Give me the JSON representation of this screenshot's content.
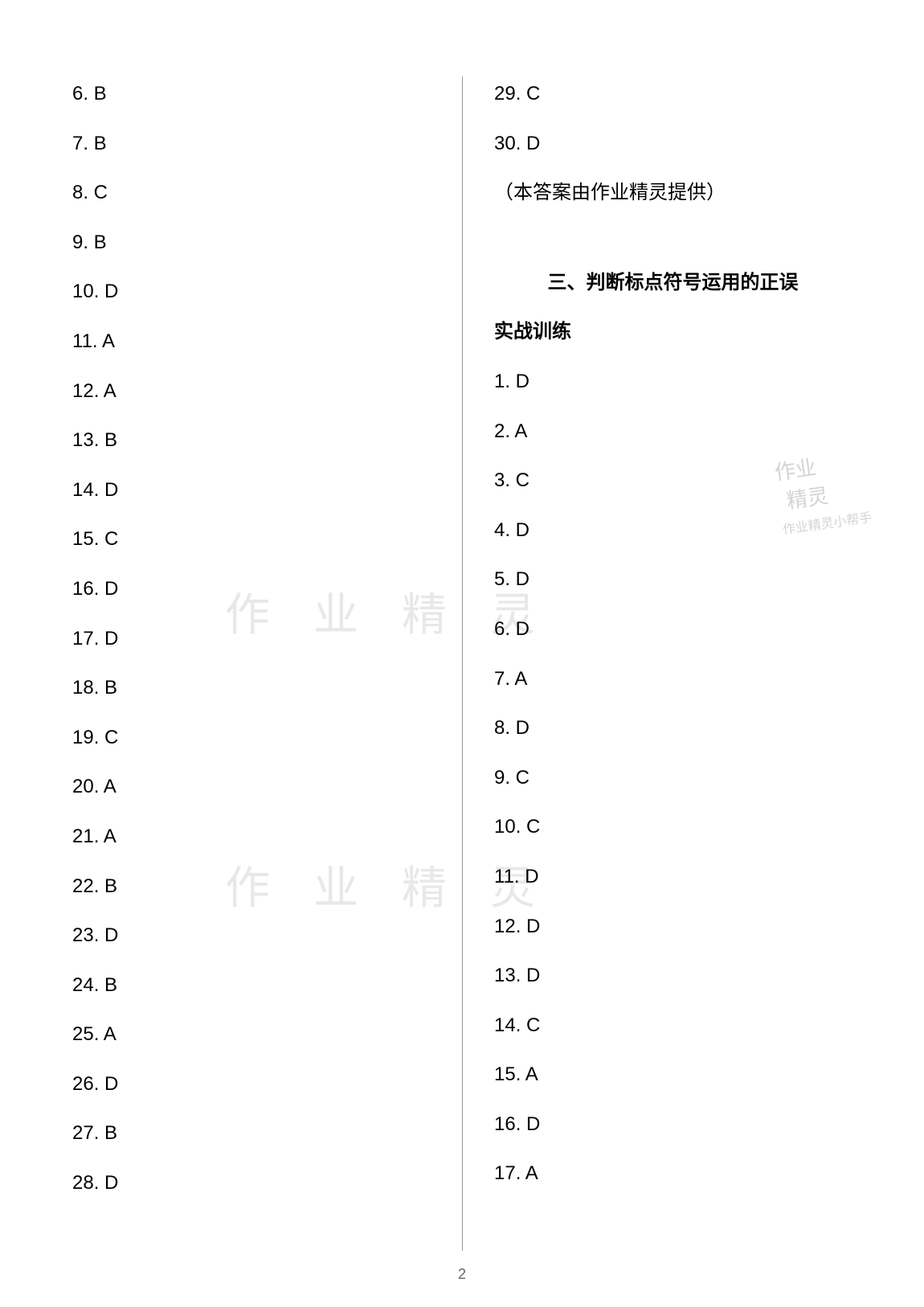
{
  "left_column": {
    "answers": [
      {
        "num": "6.",
        "ans": "B"
      },
      {
        "num": "7.",
        "ans": "B"
      },
      {
        "num": "8.",
        "ans": "C"
      },
      {
        "num": "9.",
        "ans": "B"
      },
      {
        "num": "10.",
        "ans": "D"
      },
      {
        "num": "11.",
        "ans": "A"
      },
      {
        "num": "12.",
        "ans": "A"
      },
      {
        "num": "13.",
        "ans": "B"
      },
      {
        "num": "14.",
        "ans": "D"
      },
      {
        "num": "15.",
        "ans": "C"
      },
      {
        "num": "16.",
        "ans": "D"
      },
      {
        "num": "17.",
        "ans": "D"
      },
      {
        "num": "18.",
        "ans": "B"
      },
      {
        "num": "19.",
        "ans": "C"
      },
      {
        "num": "20.",
        "ans": "A"
      },
      {
        "num": "21.",
        "ans": "A"
      },
      {
        "num": "22.",
        "ans": "B"
      },
      {
        "num": "23.",
        "ans": "D"
      },
      {
        "num": "24.",
        "ans": "B"
      },
      {
        "num": "25.",
        "ans": "A"
      },
      {
        "num": "26.",
        "ans": "D"
      },
      {
        "num": "27.",
        "ans": "B"
      },
      {
        "num": "28.",
        "ans": "D"
      }
    ]
  },
  "right_column": {
    "top_answers": [
      {
        "num": "29.",
        "ans": "C"
      },
      {
        "num": "30.",
        "ans": "D"
      }
    ],
    "note": "（本答案由作业精灵提供）",
    "section_title": "三、判断标点符号运用的正误",
    "subsection_title": "实战训练",
    "answers": [
      {
        "num": "1.",
        "ans": "D"
      },
      {
        "num": "2.",
        "ans": "A"
      },
      {
        "num": "3.",
        "ans": "C"
      },
      {
        "num": "4.",
        "ans": "D"
      },
      {
        "num": "5.",
        "ans": "D"
      },
      {
        "num": "6.",
        "ans": "D"
      },
      {
        "num": "7.",
        "ans": "A"
      },
      {
        "num": "8.",
        "ans": "D"
      },
      {
        "num": "9.",
        "ans": "C"
      },
      {
        "num": "10.",
        "ans": "C"
      },
      {
        "num": "11.",
        "ans": "D"
      },
      {
        "num": "12.",
        "ans": "D"
      },
      {
        "num": "13.",
        "ans": "D"
      },
      {
        "num": "14.",
        "ans": "C"
      },
      {
        "num": "15.",
        "ans": "A"
      },
      {
        "num": "16.",
        "ans": "D"
      },
      {
        "num": "17.",
        "ans": "A"
      }
    ]
  },
  "page_number": "2",
  "watermarks": {
    "center_text": "作 业 精 灵",
    "stamp_line1": "作业",
    "stamp_line2": "精灵",
    "stamp_line3": "作业精灵小帮手"
  },
  "colors": {
    "text": "#000000",
    "background": "#ffffff",
    "divider": "#999999",
    "watermark": "#e8e8e8",
    "stamp": "#d4d4d4",
    "page_num": "#666666"
  },
  "typography": {
    "body_fontsize": 24,
    "title_fontsize": 24,
    "watermark_fontsize": 56,
    "page_num_fontsize": 18
  }
}
